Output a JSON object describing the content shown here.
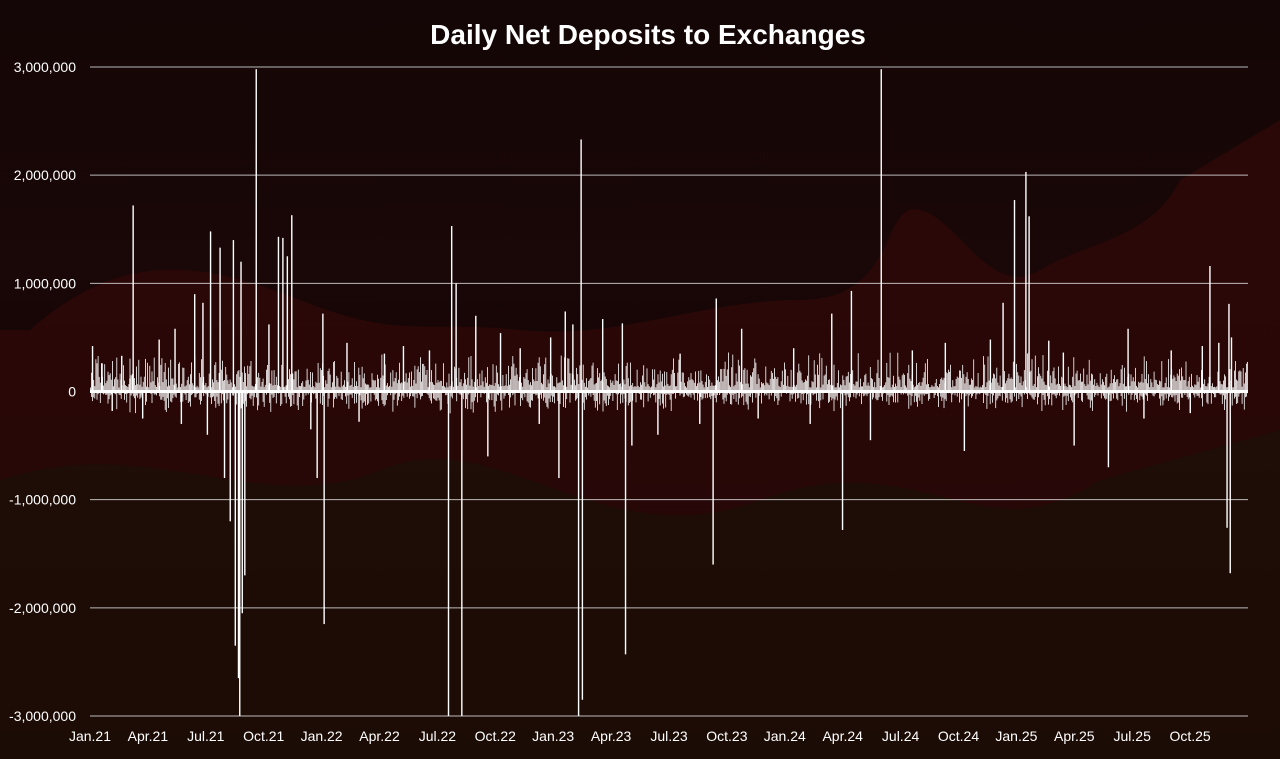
{
  "chart_data": {
    "type": "bar",
    "title": "Daily Net Deposits to Exchanges",
    "xlabel": "",
    "ylabel": "",
    "ylim": [
      -3000000,
      3000000
    ],
    "y_ticks": [
      {
        "value": 3000000,
        "label": "3,000,000"
      },
      {
        "value": 2000000,
        "label": "2,000,000"
      },
      {
        "value": 1000000,
        "label": "1,000,000"
      },
      {
        "value": 0,
        "label": "0"
      },
      {
        "value": -1000000,
        "label": "-1,000,000"
      },
      {
        "value": -2000000,
        "label": "-2,000,000"
      },
      {
        "value": -3000000,
        "label": "-3,000,000"
      }
    ],
    "x_ticks": [
      "Jan.21",
      "Apr.21",
      "Jul.21",
      "Oct.21",
      "Jan.22",
      "Apr.22",
      "Jul.22",
      "Oct.22",
      "Jan.23",
      "Apr.23",
      "Jul.23",
      "Oct.23",
      "Jan.24",
      "Apr.24",
      "Jul.24",
      "Oct.24",
      "Jan.25",
      "Apr.25",
      "Jul.25",
      "Oct.25"
    ],
    "grid": true,
    "legend": "none",
    "colors": {
      "bars": "#ffffff",
      "grid": "#d9d9d9",
      "background": "#140606"
    },
    "series": [
      {
        "values": [
          {
            "x": "2021-01-05",
            "y": 420000
          },
          {
            "x": "2021-01-20",
            "y": 260000
          },
          {
            "x": "2021-02-05",
            "y": -180000
          },
          {
            "x": "2021-02-20",
            "y": 330000
          },
          {
            "x": "2021-03-05",
            "y": 120000
          },
          {
            "x": "2021-03-10",
            "y": 1720000
          },
          {
            "x": "2021-03-25",
            "y": -250000
          },
          {
            "x": "2021-04-20",
            "y": 480000
          },
          {
            "x": "2021-05-15",
            "y": 580000
          },
          {
            "x": "2021-05-25",
            "y": -300000
          },
          {
            "x": "2021-06-15",
            "y": 900000
          },
          {
            "x": "2021-06-28",
            "y": 820000
          },
          {
            "x": "2021-07-05",
            "y": -400000
          },
          {
            "x": "2021-07-10",
            "y": 1480000
          },
          {
            "x": "2021-07-25",
            "y": 1330000
          },
          {
            "x": "2021-08-01",
            "y": -800000
          },
          {
            "x": "2021-08-10",
            "y": -1200000
          },
          {
            "x": "2021-08-15",
            "y": 1400000
          },
          {
            "x": "2021-08-18",
            "y": -2350000
          },
          {
            "x": "2021-08-23",
            "y": -2650000
          },
          {
            "x": "2021-08-25",
            "y": -3000000
          },
          {
            "x": "2021-08-27",
            "y": 1200000
          },
          {
            "x": "2021-08-29",
            "y": -2050000
          },
          {
            "x": "2021-09-02",
            "y": -1700000
          },
          {
            "x": "2021-09-20",
            "y": 2980000
          },
          {
            "x": "2021-10-10",
            "y": 620000
          },
          {
            "x": "2021-10-25",
            "y": 1430000
          },
          {
            "x": "2021-11-01",
            "y": 1420000
          },
          {
            "x": "2021-11-08",
            "y": 1250000
          },
          {
            "x": "2021-11-15",
            "y": 1630000
          },
          {
            "x": "2021-12-15",
            "y": -350000
          },
          {
            "x": "2021-12-25",
            "y": -800000
          },
          {
            "x": "2022-01-03",
            "y": 720000
          },
          {
            "x": "2022-01-05",
            "y": -2150000
          },
          {
            "x": "2022-02-10",
            "y": 450000
          },
          {
            "x": "2022-03-01",
            "y": -280000
          },
          {
            "x": "2022-04-10",
            "y": 350000
          },
          {
            "x": "2022-05-10",
            "y": 420000
          },
          {
            "x": "2022-06-20",
            "y": 380000
          },
          {
            "x": "2022-07-20",
            "y": -3000000
          },
          {
            "x": "2022-07-25",
            "y": 1530000
          },
          {
            "x": "2022-08-01",
            "y": 1000000
          },
          {
            "x": "2022-08-10",
            "y": -3000000
          },
          {
            "x": "2022-09-01",
            "y": 700000
          },
          {
            "x": "2022-09-20",
            "y": -600000
          },
          {
            "x": "2022-10-10",
            "y": 540000
          },
          {
            "x": "2022-11-10",
            "y": 400000
          },
          {
            "x": "2022-12-10",
            "y": -300000
          },
          {
            "x": "2022-12-28",
            "y": 500000
          },
          {
            "x": "2023-01-10",
            "y": -800000
          },
          {
            "x": "2023-01-20",
            "y": 740000
          },
          {
            "x": "2023-02-01",
            "y": 620000
          },
          {
            "x": "2023-02-10",
            "y": -3000000
          },
          {
            "x": "2023-02-14",
            "y": 2330000
          },
          {
            "x": "2023-02-16",
            "y": -2850000
          },
          {
            "x": "2023-03-20",
            "y": 670000
          },
          {
            "x": "2023-04-20",
            "y": 630000
          },
          {
            "x": "2023-04-25",
            "y": -2430000
          },
          {
            "x": "2023-05-05",
            "y": -500000
          },
          {
            "x": "2023-06-15",
            "y": -400000
          },
          {
            "x": "2023-07-20",
            "y": 350000
          },
          {
            "x": "2023-08-20",
            "y": -300000
          },
          {
            "x": "2023-09-10",
            "y": -1600000
          },
          {
            "x": "2023-09-15",
            "y": 860000
          },
          {
            "x": "2023-10-25",
            "y": 580000
          },
          {
            "x": "2023-11-20",
            "y": -250000
          },
          {
            "x": "2024-01-15",
            "y": 400000
          },
          {
            "x": "2024-02-10",
            "y": -300000
          },
          {
            "x": "2024-03-15",
            "y": 720000
          },
          {
            "x": "2024-04-01",
            "y": -1280000
          },
          {
            "x": "2024-04-15",
            "y": 930000
          },
          {
            "x": "2024-05-15",
            "y": -450000
          },
          {
            "x": "2024-06-01",
            "y": 2980000
          },
          {
            "x": "2024-07-20",
            "y": 380000
          },
          {
            "x": "2024-09-10",
            "y": 450000
          },
          {
            "x": "2024-10-10",
            "y": -550000
          },
          {
            "x": "2024-11-20",
            "y": 480000
          },
          {
            "x": "2024-12-10",
            "y": 820000
          },
          {
            "x": "2024-12-28",
            "y": 1770000
          },
          {
            "x": "2025-01-15",
            "y": 2030000
          },
          {
            "x": "2025-01-20",
            "y": 1620000
          },
          {
            "x": "2025-02-20",
            "y": 470000
          },
          {
            "x": "2025-03-15",
            "y": 360000
          },
          {
            "x": "2025-04-01",
            "y": -500000
          },
          {
            "x": "2025-05-25",
            "y": -700000
          },
          {
            "x": "2025-06-25",
            "y": 580000
          },
          {
            "x": "2025-07-20",
            "y": -250000
          },
          {
            "x": "2025-09-01",
            "y": 380000
          },
          {
            "x": "2025-10-01",
            "y": -200000
          },
          {
            "x": "2025-10-20",
            "y": 420000
          },
          {
            "x": "2025-11-01",
            "y": 1160000
          },
          {
            "x": "2025-11-15",
            "y": 450000
          },
          {
            "x": "2025-11-28",
            "y": -1260000
          },
          {
            "x": "2025-12-01",
            "y": 810000
          },
          {
            "x": "2025-12-03",
            "y": -1680000
          },
          {
            "x": "2025-12-05",
            "y": 500000
          }
        ]
      }
    ]
  }
}
